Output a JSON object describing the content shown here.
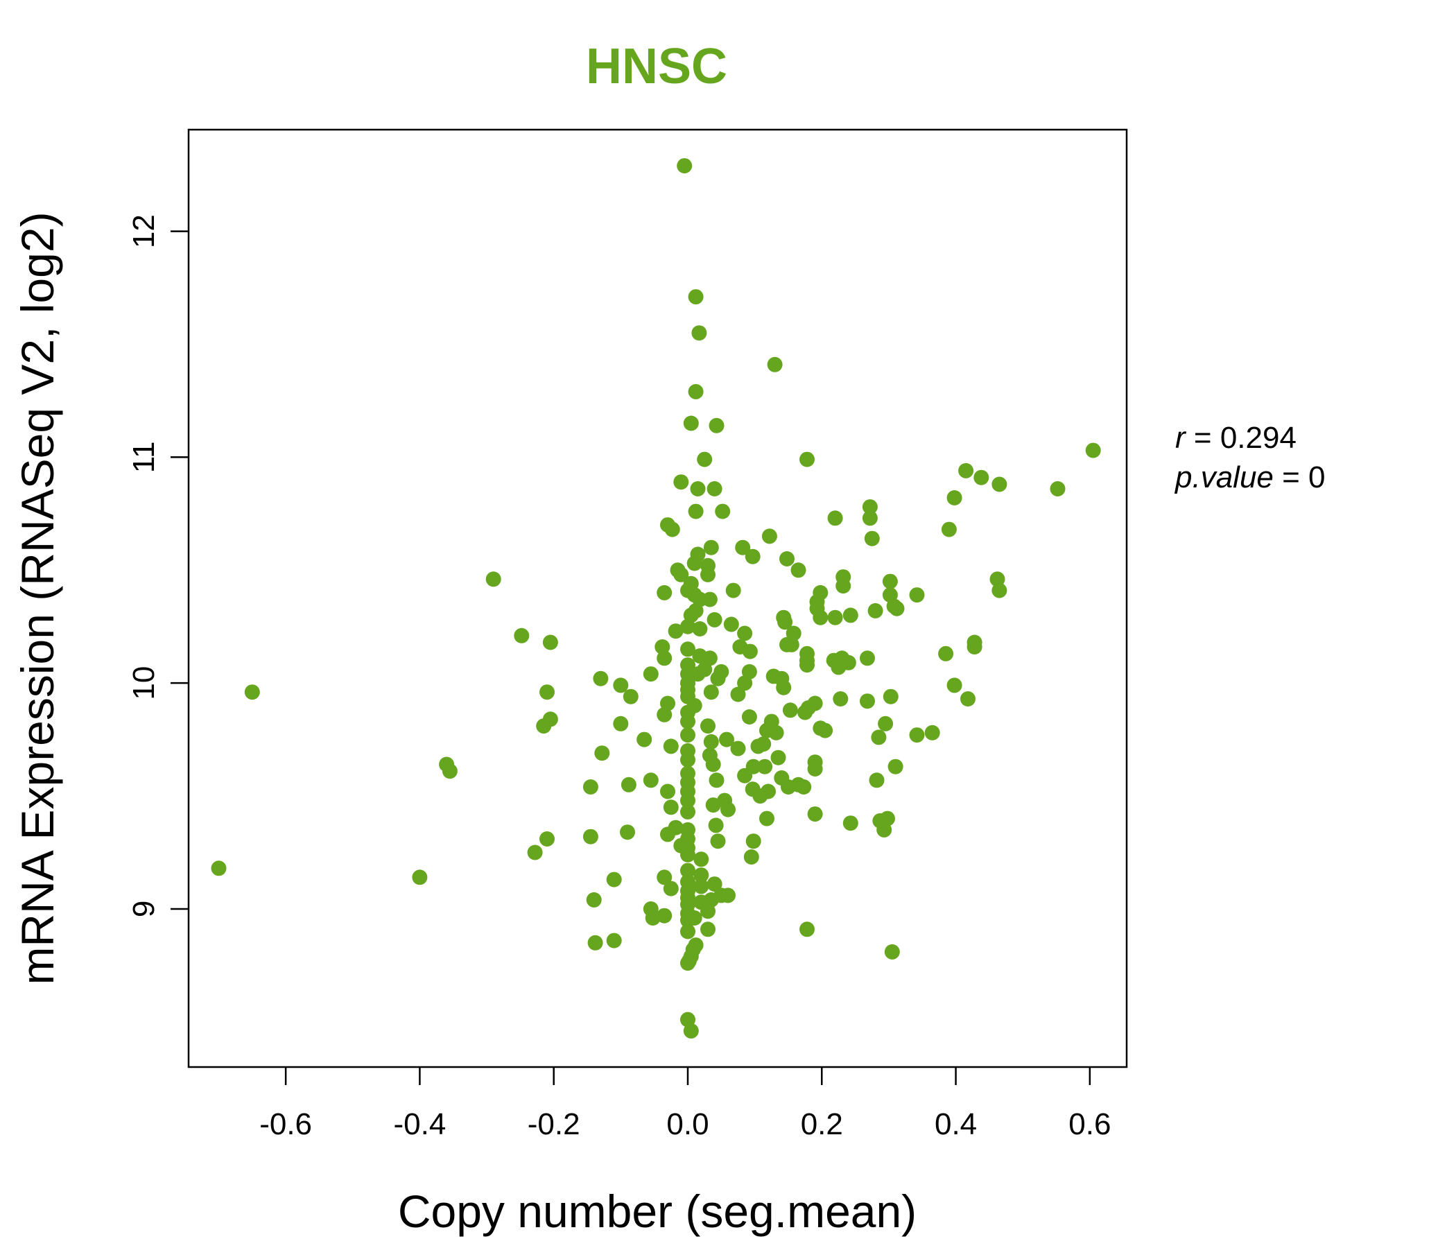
{
  "chart_data": {
    "type": "scatter",
    "title": "HNSC",
    "xlabel": "Copy number (seg.mean)",
    "ylabel": "mRNA Expression (RNASeq V2, log2)",
    "xlim": [
      -0.745,
      0.655
    ],
    "ylim": [
      8.3,
      12.45
    ],
    "xticks": [
      -0.6,
      -0.4,
      -0.2,
      0.0,
      0.2,
      0.4,
      0.6
    ],
    "xtick_labels": [
      "-0.6",
      "-0.4",
      "-0.2",
      "0.0",
      "0.2",
      "0.4",
      "0.6"
    ],
    "yticks": [
      9,
      10,
      11,
      12
    ],
    "ytick_labels": [
      "9",
      "10",
      "11",
      "12"
    ],
    "point_color": "#66A61E",
    "grid": false,
    "stats": {
      "r_label": "r",
      "r_value": "0.294",
      "p_label": "p.value",
      "p_value": "0"
    },
    "points": [
      [
        -0.005,
        12.29
      ],
      [
        0.012,
        11.71
      ],
      [
        0.017,
        11.55
      ],
      [
        0.13,
        11.41
      ],
      [
        0.012,
        11.29
      ],
      [
        0.005,
        11.15
      ],
      [
        0.043,
        11.14
      ],
      [
        0.025,
        10.99
      ],
      [
        0.178,
        10.99
      ],
      [
        0.605,
        11.03
      ],
      [
        0.415,
        10.94
      ],
      [
        0.438,
        10.91
      ],
      [
        0.465,
        10.88
      ],
      [
        0.552,
        10.86
      ],
      [
        -0.01,
        10.89
      ],
      [
        0.04,
        10.86
      ],
      [
        0.015,
        10.86
      ],
      [
        0.398,
        10.82
      ],
      [
        0.272,
        10.78
      ],
      [
        0.012,
        10.76
      ],
      [
        0.052,
        10.76
      ],
      [
        0.22,
        10.73
      ],
      [
        0.272,
        10.73
      ],
      [
        -0.03,
        10.7
      ],
      [
        -0.023,
        10.68
      ],
      [
        0.39,
        10.68
      ],
      [
        0.122,
        10.65
      ],
      [
        0.275,
        10.64
      ],
      [
        0.035,
        10.6
      ],
      [
        0.082,
        10.6
      ],
      [
        0.015,
        10.57
      ],
      [
        0.097,
        10.56
      ],
      [
        0.148,
        10.55
      ],
      [
        0.01,
        10.53
      ],
      [
        0.03,
        10.52
      ],
      [
        0.165,
        10.5
      ],
      [
        -0.015,
        10.5
      ],
      [
        -0.01,
        10.48
      ],
      [
        0.03,
        10.48
      ],
      [
        0.232,
        10.47
      ],
      [
        -0.29,
        10.46
      ],
      [
        0.462,
        10.46
      ],
      [
        0.302,
        10.45
      ],
      [
        0.005,
        10.44
      ],
      [
        0.232,
        10.43
      ],
      [
        0.0,
        10.41
      ],
      [
        0.068,
        10.41
      ],
      [
        0.465,
        10.41
      ],
      [
        -0.035,
        10.4
      ],
      [
        0.198,
        10.4
      ],
      [
        0.01,
        10.39
      ],
      [
        0.302,
        10.39
      ],
      [
        0.342,
        10.39
      ],
      [
        0.018,
        10.37
      ],
      [
        0.033,
        10.37
      ],
      [
        0.193,
        10.36
      ],
      [
        0.308,
        10.34
      ],
      [
        0.312,
        10.33
      ],
      [
        0.193,
        10.33
      ],
      [
        0.28,
        10.32
      ],
      [
        0.012,
        10.32
      ],
      [
        0.005,
        10.3
      ],
      [
        0.243,
        10.3
      ],
      [
        0.198,
        10.29
      ],
      [
        0.22,
        10.29
      ],
      [
        0.143,
        10.29
      ],
      [
        0.04,
        10.28
      ],
      [
        0.145,
        10.27
      ],
      [
        0.065,
        10.26
      ],
      [
        0.0,
        10.25
      ],
      [
        0.018,
        10.24
      ],
      [
        -0.018,
        10.23
      ],
      [
        0.158,
        10.22
      ],
      [
        0.085,
        10.22
      ],
      [
        -0.248,
        10.21
      ],
      [
        -0.205,
        10.18
      ],
      [
        0.428,
        10.18
      ],
      [
        0.155,
        10.17
      ],
      [
        0.148,
        10.17
      ],
      [
        0.428,
        10.16
      ],
      [
        -0.038,
        10.16
      ],
      [
        0.078,
        10.16
      ],
      [
        0.0,
        10.15
      ],
      [
        0.093,
        10.14
      ],
      [
        0.178,
        10.13
      ],
      [
        0.385,
        10.13
      ],
      [
        0.018,
        10.12
      ],
      [
        0.23,
        10.11
      ],
      [
        -0.035,
        10.11
      ],
      [
        0.033,
        10.11
      ],
      [
        0.268,
        10.11
      ],
      [
        0.178,
        10.1
      ],
      [
        0.218,
        10.1
      ],
      [
        0.24,
        10.09
      ],
      [
        0.0,
        10.08
      ],
      [
        0.178,
        10.08
      ],
      [
        0.225,
        10.07
      ],
      [
        0.025,
        10.06
      ],
      [
        0.05,
        10.05
      ],
      [
        0.092,
        10.05
      ],
      [
        0.0,
        10.04
      ],
      [
        -0.055,
        10.04
      ],
      [
        0.015,
        10.04
      ],
      [
        0.128,
        10.03
      ],
      [
        0.14,
        10.02
      ],
      [
        -0.13,
        10.02
      ],
      [
        0.045,
        10.02
      ],
      [
        0.0,
        10.0
      ],
      [
        0.085,
        10.0
      ],
      [
        0.398,
        9.99
      ],
      [
        -0.1,
        9.99
      ],
      [
        0.143,
        9.98
      ],
      [
        0.0,
        9.97
      ],
      [
        -0.65,
        9.96
      ],
      [
        -0.21,
        9.96
      ],
      [
        0.035,
        9.96
      ],
      [
        0.075,
        9.95
      ],
      [
        -0.085,
        9.94
      ],
      [
        0.303,
        9.94
      ],
      [
        0.0,
        9.94
      ],
      [
        0.418,
        9.93
      ],
      [
        0.228,
        9.93
      ],
      [
        0.268,
        9.92
      ],
      [
        0.19,
        9.91
      ],
      [
        -0.03,
        9.91
      ],
      [
        0.01,
        9.9
      ],
      [
        0.18,
        9.89
      ],
      [
        0.153,
        9.88
      ],
      [
        0.0,
        9.87
      ],
      [
        0.175,
        9.87
      ],
      [
        -0.035,
        9.86
      ],
      [
        0.092,
        9.85
      ],
      [
        -0.205,
        9.84
      ],
      [
        0.125,
        9.83
      ],
      [
        0.0,
        9.83
      ],
      [
        -0.1,
        9.82
      ],
      [
        0.295,
        9.82
      ],
      [
        0.03,
        9.81
      ],
      [
        -0.215,
        9.81
      ],
      [
        0.198,
        9.8
      ],
      [
        0.205,
        9.79
      ],
      [
        0.118,
        9.79
      ],
      [
        0.365,
        9.78
      ],
      [
        0.132,
        9.78
      ],
      [
        0.342,
        9.77
      ],
      [
        0.0,
        9.77
      ],
      [
        0.285,
        9.76
      ],
      [
        -0.065,
        9.75
      ],
      [
        0.058,
        9.75
      ],
      [
        0.035,
        9.74
      ],
      [
        0.113,
        9.73
      ],
      [
        0.105,
        9.72
      ],
      [
        -0.025,
        9.72
      ],
      [
        0.075,
        9.71
      ],
      [
        0.0,
        9.7
      ],
      [
        -0.128,
        9.69
      ],
      [
        0.033,
        9.68
      ],
      [
        0.135,
        9.67
      ],
      [
        0.0,
        9.66
      ],
      [
        0.19,
        9.65
      ],
      [
        -0.36,
        9.64
      ],
      [
        0.038,
        9.64
      ],
      [
        0.098,
        9.63
      ],
      [
        0.31,
        9.63
      ],
      [
        0.115,
        9.63
      ],
      [
        0.19,
        9.62
      ],
      [
        -0.355,
        9.61
      ],
      [
        0.0,
        9.6
      ],
      [
        0.085,
        9.59
      ],
      [
        0.14,
        9.58
      ],
      [
        0.043,
        9.57
      ],
      [
        -0.055,
        9.57
      ],
      [
        0.282,
        9.57
      ],
      [
        0.0,
        9.56
      ],
      [
        0.165,
        9.55
      ],
      [
        -0.088,
        9.55
      ],
      [
        0.15,
        9.54
      ],
      [
        0.173,
        9.54
      ],
      [
        -0.145,
        9.54
      ],
      [
        0.097,
        9.53
      ],
      [
        0.0,
        9.52
      ],
      [
        0.12,
        9.52
      ],
      [
        -0.03,
        9.52
      ],
      [
        0.108,
        9.5
      ],
      [
        0.055,
        9.48
      ],
      [
        0.0,
        9.48
      ],
      [
        0.038,
        9.46
      ],
      [
        -0.025,
        9.45
      ],
      [
        0.06,
        9.44
      ],
      [
        0.0,
        9.43
      ],
      [
        0.19,
        9.42
      ],
      [
        0.118,
        9.4
      ],
      [
        0.298,
        9.4
      ],
      [
        0.287,
        9.39
      ],
      [
        0.243,
        9.38
      ],
      [
        0.042,
        9.37
      ],
      [
        -0.018,
        9.36
      ],
      [
        0.293,
        9.35
      ],
      [
        0.0,
        9.35
      ],
      [
        -0.09,
        9.34
      ],
      [
        -0.03,
        9.33
      ],
      [
        -0.145,
        9.32
      ],
      [
        0.0,
        9.31
      ],
      [
        -0.21,
        9.31
      ],
      [
        0.098,
        9.3
      ],
      [
        0.045,
        9.3
      ],
      [
        -0.01,
        9.28
      ],
      [
        0.0,
        9.27
      ],
      [
        -0.228,
        9.25
      ],
      [
        0.0,
        9.24
      ],
      [
        0.095,
        9.23
      ],
      [
        0.02,
        9.22
      ],
      [
        -0.7,
        9.18
      ],
      [
        0.0,
        9.17
      ],
      [
        0.02,
        9.15
      ],
      [
        -0.4,
        9.14
      ],
      [
        -0.035,
        9.14
      ],
      [
        -0.11,
        9.13
      ],
      [
        0.0,
        9.12
      ],
      [
        0.04,
        9.11
      ],
      [
        0.02,
        9.1
      ],
      [
        -0.025,
        9.09
      ],
      [
        0.0,
        9.08
      ],
      [
        0.06,
        9.06
      ],
      [
        0.05,
        9.06
      ],
      [
        0.0,
        9.05
      ],
      [
        -0.14,
        9.04
      ],
      [
        0.035,
        9.04
      ],
      [
        0.02,
        9.03
      ],
      [
        0.0,
        9.02
      ],
      [
        -0.055,
        9.0
      ],
      [
        0.03,
        8.99
      ],
      [
        0.0,
        8.98
      ],
      [
        -0.035,
        8.97
      ],
      [
        -0.052,
        8.96
      ],
      [
        0.01,
        8.96
      ],
      [
        0.0,
        8.95
      ],
      [
        0.03,
        8.91
      ],
      [
        0.178,
        8.91
      ],
      [
        0.0,
        8.9
      ],
      [
        -0.11,
        8.86
      ],
      [
        -0.138,
        8.85
      ],
      [
        0.012,
        8.84
      ],
      [
        0.008,
        8.82
      ],
      [
        0.305,
        8.81
      ],
      [
        0.005,
        8.79
      ],
      [
        0.002,
        8.77
      ],
      [
        0.0,
        8.76
      ],
      [
        0.0,
        8.51
      ],
      [
        0.005,
        8.46
      ]
    ]
  }
}
